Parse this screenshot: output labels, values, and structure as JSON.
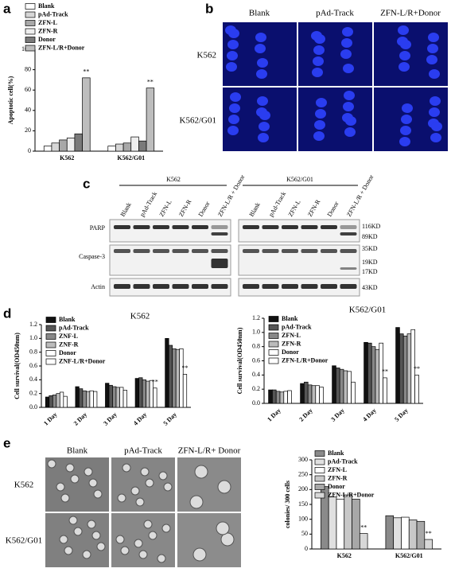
{
  "figure": {
    "letters": [
      "a",
      "b",
      "c",
      "d",
      "e"
    ],
    "b": {
      "columns": [
        "Blank",
        "pAd-Track",
        "ZFN-L/R+Donor"
      ],
      "rows": [
        "K562",
        "K562/G01"
      ]
    },
    "c": {
      "groups": [
        "K562",
        "K562/G01"
      ],
      "lanes_left": [
        "Blank",
        "pAd-Track",
        "ZFN-L",
        "ZFN-R",
        "Donor",
        "ZFN-L/R + Donor"
      ],
      "lanes_right": [
        "Blank",
        "pAd-Track",
        "ZFN-L",
        "ZFN-R",
        "Donor",
        "ZFN-L/R + Donor"
      ],
      "rows": [
        "PARP",
        "Caspase-3",
        "Actin"
      ],
      "sizes": [
        "116KD",
        "89KD",
        "35KD",
        "19KD",
        "17KD",
        "43KD"
      ]
    },
    "e": {
      "columns": [
        "Blank",
        "pAd-Track",
        "ZFN-L/R+ Donor"
      ],
      "rows": [
        "K562",
        "K562/G01"
      ]
    }
  },
  "chart_data": [
    {
      "type": "bar",
      "y_label": "Apoptotic cell(%)",
      "categories": [
        "K562",
        "K562/G01"
      ],
      "ylim": [
        0,
        100
      ],
      "yticks": [
        0,
        20,
        40,
        60,
        80,
        100
      ],
      "legend": "upper left",
      "series": [
        {
          "name": "Blank",
          "color": "#ffffff",
          "values": [
            5,
            5
          ]
        },
        {
          "name": "pAd-Track",
          "color": "#d6d6d6",
          "values": [
            8,
            7
          ]
        },
        {
          "name": "ZFN-L",
          "color": "#a8a8a8",
          "values": [
            11,
            8
          ]
        },
        {
          "name": "ZFN-R",
          "color": "#eeeeee",
          "values": [
            13,
            14
          ]
        },
        {
          "name": "Donor",
          "color": "#7a7a7a",
          "values": [
            17,
            10
          ]
        },
        {
          "name": "ZFN-L/R+Donor",
          "color": "#bdbdbd",
          "values": [
            72,
            62
          ]
        }
      ],
      "annotations": [
        "**",
        "**"
      ]
    },
    {
      "type": "bar",
      "title": "K562",
      "y_label": "Cell survival(OD450nm)",
      "categories": [
        "1 Day",
        "2 Day",
        "3 Day",
        "4 Day",
        "5 Day"
      ],
      "ylim": [
        0,
        1.2
      ],
      "yticks": [
        {
          "value": 0,
          "label": "0.0"
        },
        0.2,
        0.4,
        0.6,
        0.8,
        {
          "value": 1,
          "label": "1.0"
        },
        1.2
      ],
      "legend": "upper left",
      "series": [
        {
          "name": "Blank",
          "color": "#111111",
          "values": [
            0.15,
            0.3,
            0.35,
            0.42,
            1.0
          ]
        },
        {
          "name": "pAd-Track",
          "color": "#555555",
          "values": [
            0.17,
            0.27,
            0.32,
            0.43,
            0.9
          ]
        },
        {
          "name": "ZNF-L",
          "color": "#888888",
          "values": [
            0.18,
            0.24,
            0.3,
            0.4,
            0.85
          ]
        },
        {
          "name": "ZNF-R",
          "color": "#bbbbbb",
          "values": [
            0.2,
            0.23,
            0.29,
            0.38,
            0.84
          ]
        },
        {
          "name": "Donor",
          "color": "#ffffff",
          "values": [
            0.22,
            0.24,
            0.29,
            0.39,
            0.85
          ]
        },
        {
          "name": "ZNF-L/R+Donor",
          "color": "#ffffff",
          "values": [
            0.16,
            0.23,
            0.25,
            0.28,
            0.48
          ]
        }
      ],
      "annotations": [
        "**",
        "**"
      ]
    },
    {
      "type": "bar",
      "title": "K562/G01",
      "y_label": "Cell survival(OD450nm)",
      "categories": [
        "1 Day",
        "2 Day",
        "3 Day",
        "4 Day",
        "5 Day"
      ],
      "ylim": [
        0,
        1.2
      ],
      "yticks": [
        {
          "value": 0,
          "label": "0.0"
        },
        0.2,
        0.4,
        0.6,
        0.8,
        {
          "value": 1,
          "label": "1.0"
        },
        1.2
      ],
      "legend": "upper left",
      "series": [
        {
          "name": "Blank",
          "color": "#111111",
          "values": [
            0.19,
            0.28,
            0.53,
            0.86,
            1.07
          ]
        },
        {
          "name": "pAd-Track",
          "color": "#555555",
          "values": [
            0.19,
            0.3,
            0.5,
            0.85,
            0.98
          ]
        },
        {
          "name": "ZFN-L",
          "color": "#888888",
          "values": [
            0.17,
            0.26,
            0.48,
            0.8,
            0.95
          ]
        },
        {
          "name": "ZFN-R",
          "color": "#bbbbbb",
          "values": [
            0.16,
            0.25,
            0.46,
            0.76,
            0.98
          ]
        },
        {
          "name": "Donor",
          "color": "#ffffff",
          "values": [
            0.17,
            0.25,
            0.45,
            0.85,
            1.04
          ]
        },
        {
          "name": "ZFN-L/R+Donor",
          "color": "#ffffff",
          "values": [
            0.18,
            0.23,
            0.3,
            0.36,
            0.4
          ]
        }
      ],
      "annotations": [
        "**",
        "**"
      ]
    },
    {
      "type": "bar",
      "y_label": "colonies/ 300 cells",
      "categories": [
        "K562",
        "K562/G01"
      ],
      "ylim": [
        0,
        300
      ],
      "yticks": [
        0,
        50,
        100,
        150,
        200,
        250,
        300
      ],
      "legend": "upper left",
      "series": [
        {
          "name": "Blank",
          "color": "#8a8a8a",
          "values": [
            210,
            112
          ]
        },
        {
          "name": "pAd-Track",
          "color": "#e0e0e0",
          "values": [
            175,
            105
          ]
        },
        {
          "name": "ZFN-L",
          "color": "#ffffff",
          "values": [
            168,
            107
          ]
        },
        {
          "name": "ZFN-R",
          "color": "#c8c8c8",
          "values": [
            182,
            98
          ]
        },
        {
          "name": "Donor",
          "color": "#a8a8a8",
          "values": [
            168,
            93
          ]
        },
        {
          "name": "ZFN-L/R+Donor",
          "color": "#d8d8d8",
          "values": [
            52,
            32
          ]
        }
      ],
      "annotations": [
        "**",
        "**"
      ]
    }
  ]
}
